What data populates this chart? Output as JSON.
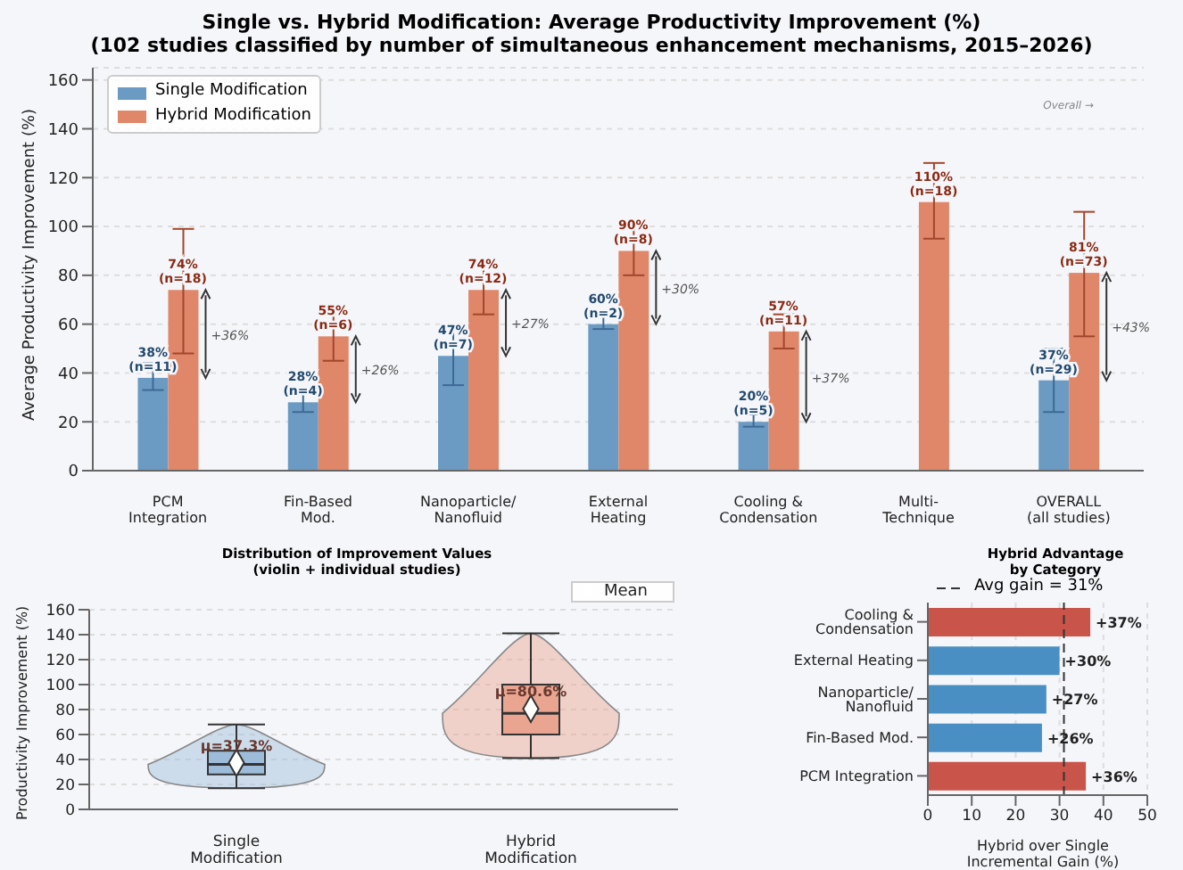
{
  "chart_data": [
    {
      "type": "bar",
      "title": "Single vs. Hybrid Modification: Average Productivity Improvement (%)",
      "subtitle": "(102 studies classified by number of simultaneous enhancement mechanisms, 2015–2026)",
      "ylabel": "Average Productivity Improvement (%)",
      "categories": [
        "PCM\nIntegration",
        "Fin-Based\nMod.",
        "Nanoparticle/\nNanofluid",
        "External\nHeating",
        "Cooling &\nCondensation",
        "Multi-\nTechnique",
        "OVERALL\n(all studies)"
      ],
      "series": [
        {
          "name": "Single Modification",
          "color": "#6b9bc3",
          "values": [
            38,
            28,
            47,
            60,
            20,
            null,
            37
          ],
          "errors": [
            [
              33,
              44
            ],
            [
              24,
              32
            ],
            [
              35,
              59
            ],
            [
              58,
              64
            ],
            [
              18,
              23
            ],
            null,
            [
              24,
              50
            ]
          ],
          "value_labels": [
            "38%\n(n=11)",
            "28%\n(n=4)",
            "47%\n(n=7)",
            "60%\n(n=2)",
            "20%\n(n=5)",
            null,
            "37%\n(n=29)"
          ]
        },
        {
          "name": "Hybrid Modification",
          "color": "#e0876a",
          "values": [
            74,
            55,
            74,
            90,
            57,
            110,
            81
          ],
          "errors": [
            [
              48,
              99
            ],
            [
              45,
              64
            ],
            [
              64,
              85
            ],
            [
              80,
              101
            ],
            [
              50,
              64
            ],
            [
              95,
              126
            ],
            [
              55,
              106
            ]
          ],
          "value_labels": [
            "74%\n(n=18)",
            "55%\n(n=6)",
            "74%\n(n=12)",
            "90%\n(n=8)",
            "57%\n(n=11)",
            "110%\n(n=18)",
            "81%\n(n=73)"
          ]
        }
      ],
      "ylim": [
        0,
        165
      ],
      "yticks": [
        0,
        20,
        40,
        60,
        80,
        100,
        120,
        140,
        160
      ],
      "grid": "y",
      "legend": "top left",
      "annotations": [
        "+36%",
        "+26%",
        "+27%",
        "+30%",
        "+37%",
        "+43%",
        "Overall →"
      ]
    },
    {
      "type": "box",
      "title": "Distribution of Improvement Values",
      "subtitle": "(violin + individual studies)",
      "ylabel": "Productivity Improvement (%)",
      "categories": [
        "Single\nModification",
        "Hybrid\nModification"
      ],
      "boxes": [
        {
          "low": 17,
          "q1": 28,
          "median": 36,
          "q3": 47,
          "high": 68
        },
        {
          "low": 41,
          "q1": 60,
          "median": 77,
          "q3": 100,
          "high": 141
        }
      ],
      "colors": [
        "#9dbcd9",
        "#e9a590"
      ],
      "series": [
        {
          "name": "Mean",
          "type": "scatter",
          "color": "#ffffff",
          "values": [
            37.3,
            80.6
          ]
        }
      ],
      "marker": "diamond",
      "ylim": [
        0,
        160
      ],
      "yticks": [
        0,
        20,
        40,
        60,
        80,
        100,
        120,
        140,
        160
      ],
      "grid": "y",
      "legend": "top right",
      "annotations": [
        {
          "text": "μ=37.3%",
          "x": "Single\nModification",
          "y": 37.3
        },
        {
          "text": "μ=80.6%",
          "x": "Hybrid\nModification",
          "y": 80.6
        }
      ]
    },
    {
      "type": "bar",
      "orientation": "horizontal",
      "title": "Hybrid Advantage\nby Category",
      "xlabel": "Hybrid over Single\nIncremental Gain (%)",
      "categories": [
        "Cooling & Condensation",
        "External Heating",
        "Nanoparticle/ Nanofluid",
        "Fin-Based Mod.",
        "PCM Integration"
      ],
      "values": [
        37,
        30,
        27,
        26,
        36
      ],
      "colors": [
        "#c9544a",
        "#4a8fc4",
        "#4a8fc4",
        "#4a8fc4",
        "#c9544a"
      ],
      "value_labels": [
        "+37%",
        "+30%",
        "+27%",
        "+26%",
        "+36%"
      ],
      "xlim": [
        0,
        50
      ],
      "xticks": [
        0,
        10,
        20,
        30,
        40,
        50
      ],
      "grid": "x",
      "legend": "top left",
      "ref_lines": [
        {
          "axis": "x",
          "value": 31,
          "label": "Avg gain = 31%",
          "line_style": "dashed",
          "color": "#333333"
        }
      ]
    }
  ]
}
